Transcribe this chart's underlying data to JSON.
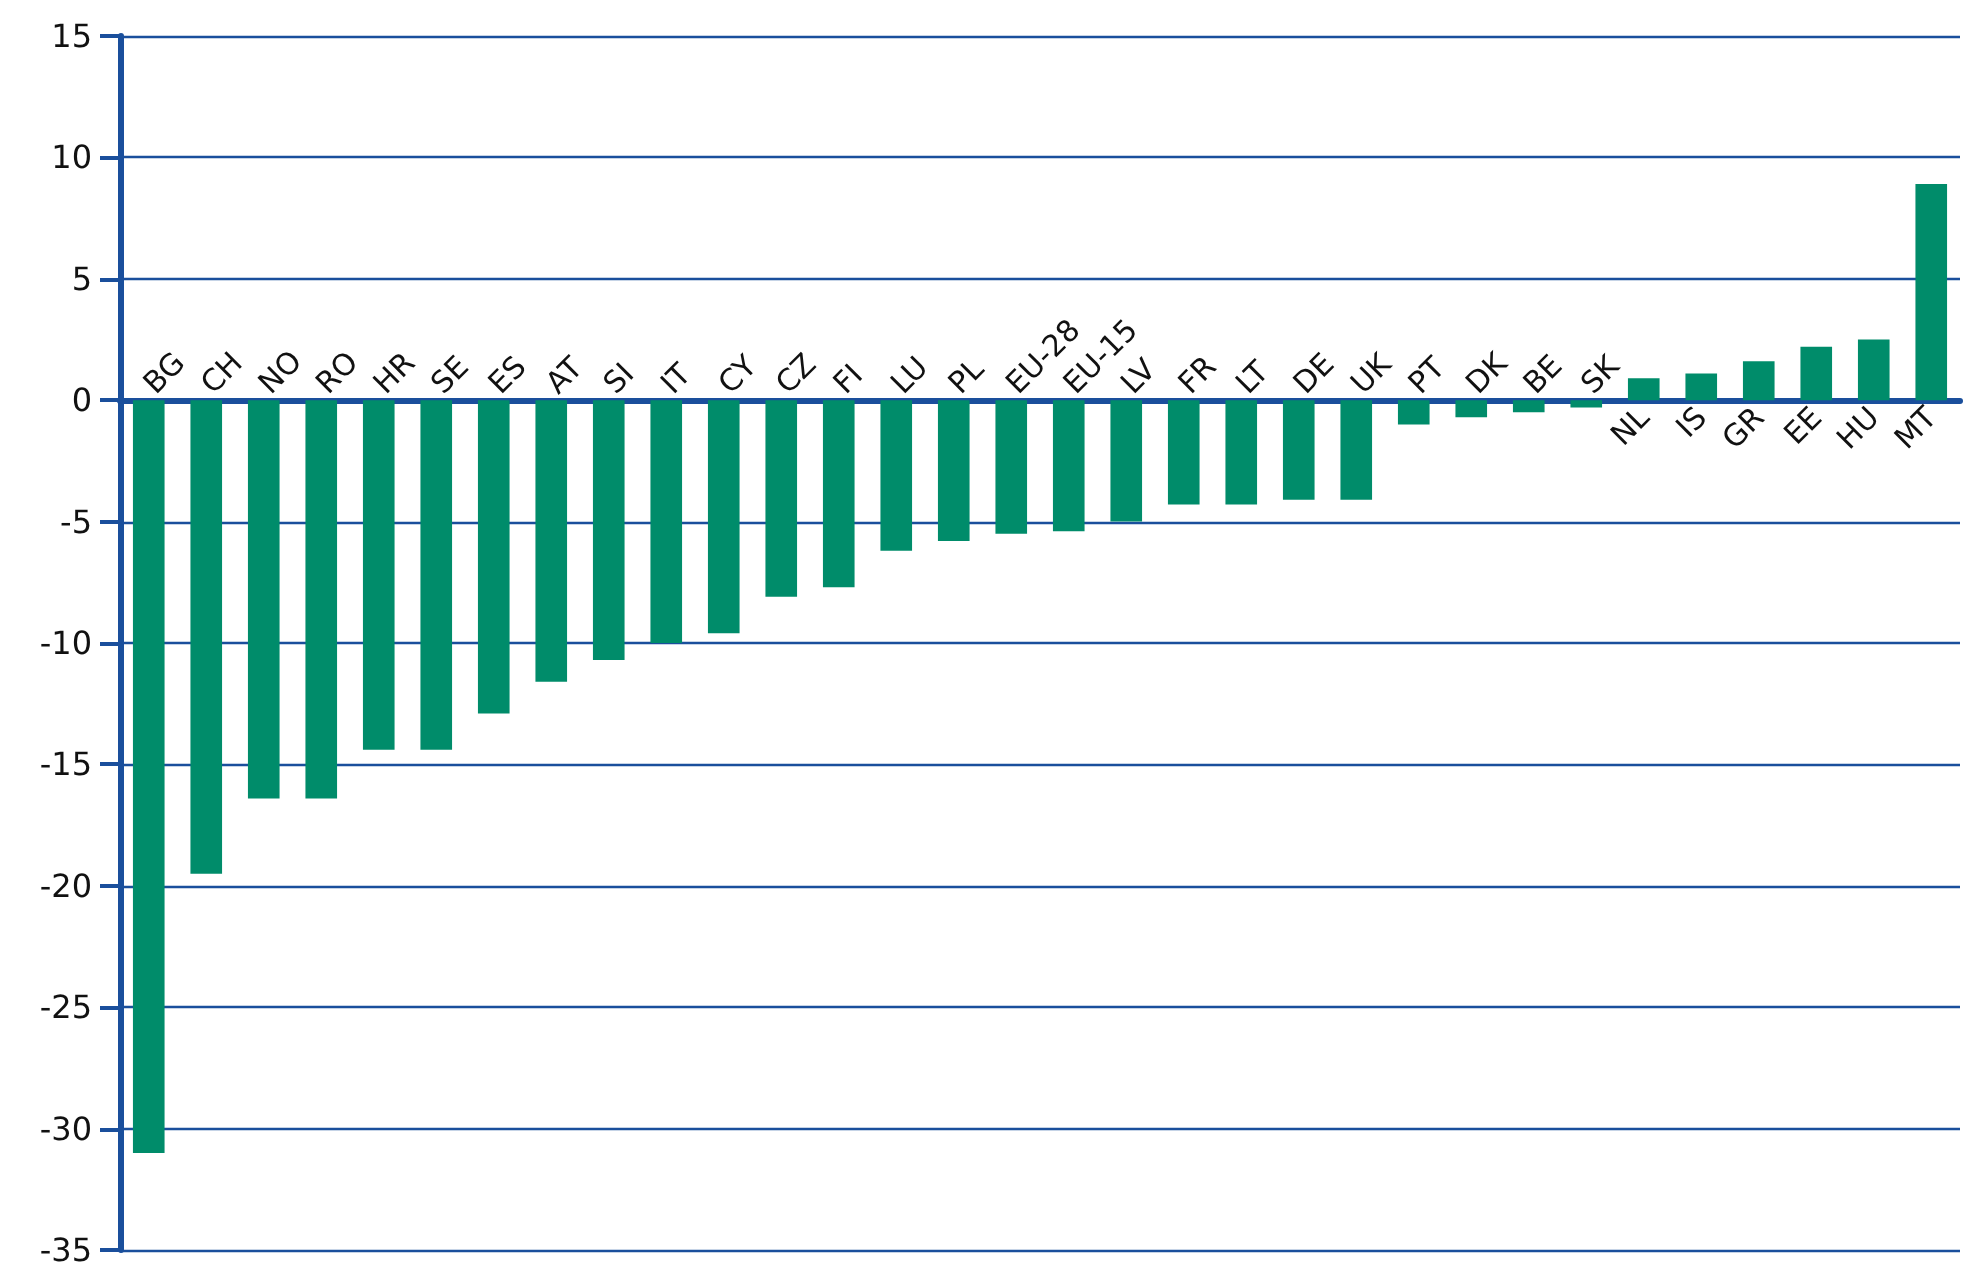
{
  "chart_data": {
    "type": "bar",
    "categories": [
      "BG",
      "CH",
      "NO",
      "RO",
      "HR",
      "SE",
      "ES",
      "AT",
      "SI",
      "IT",
      "CY",
      "CZ",
      "FI",
      "LU",
      "PL",
      "EU-28",
      "EU-15",
      "LV",
      "FR",
      "LT",
      "DE",
      "UK",
      "PT",
      "DK",
      "BE",
      "SK",
      "NL",
      "IS",
      "GR",
      "EE",
      "HU",
      "MT"
    ],
    "values": [
      -31.0,
      -19.5,
      -16.4,
      -16.4,
      -14.4,
      -14.4,
      -12.9,
      -11.6,
      -10.7,
      -10.0,
      -9.6,
      -8.1,
      -7.7,
      -6.2,
      -5.8,
      -5.5,
      -5.4,
      -5.0,
      -4.3,
      -4.3,
      -4.1,
      -4.1,
      -1.0,
      -0.7,
      -0.5,
      -0.3,
      0.9,
      1.1,
      1.6,
      2.2,
      2.5,
      8.9
    ],
    "color": "#008c6a",
    "ylim": [
      -35,
      15
    ],
    "yticks": [
      -35,
      -30,
      -25,
      -20,
      -15,
      -10,
      -5,
      0,
      5,
      10,
      15
    ],
    "grid": "y"
  }
}
